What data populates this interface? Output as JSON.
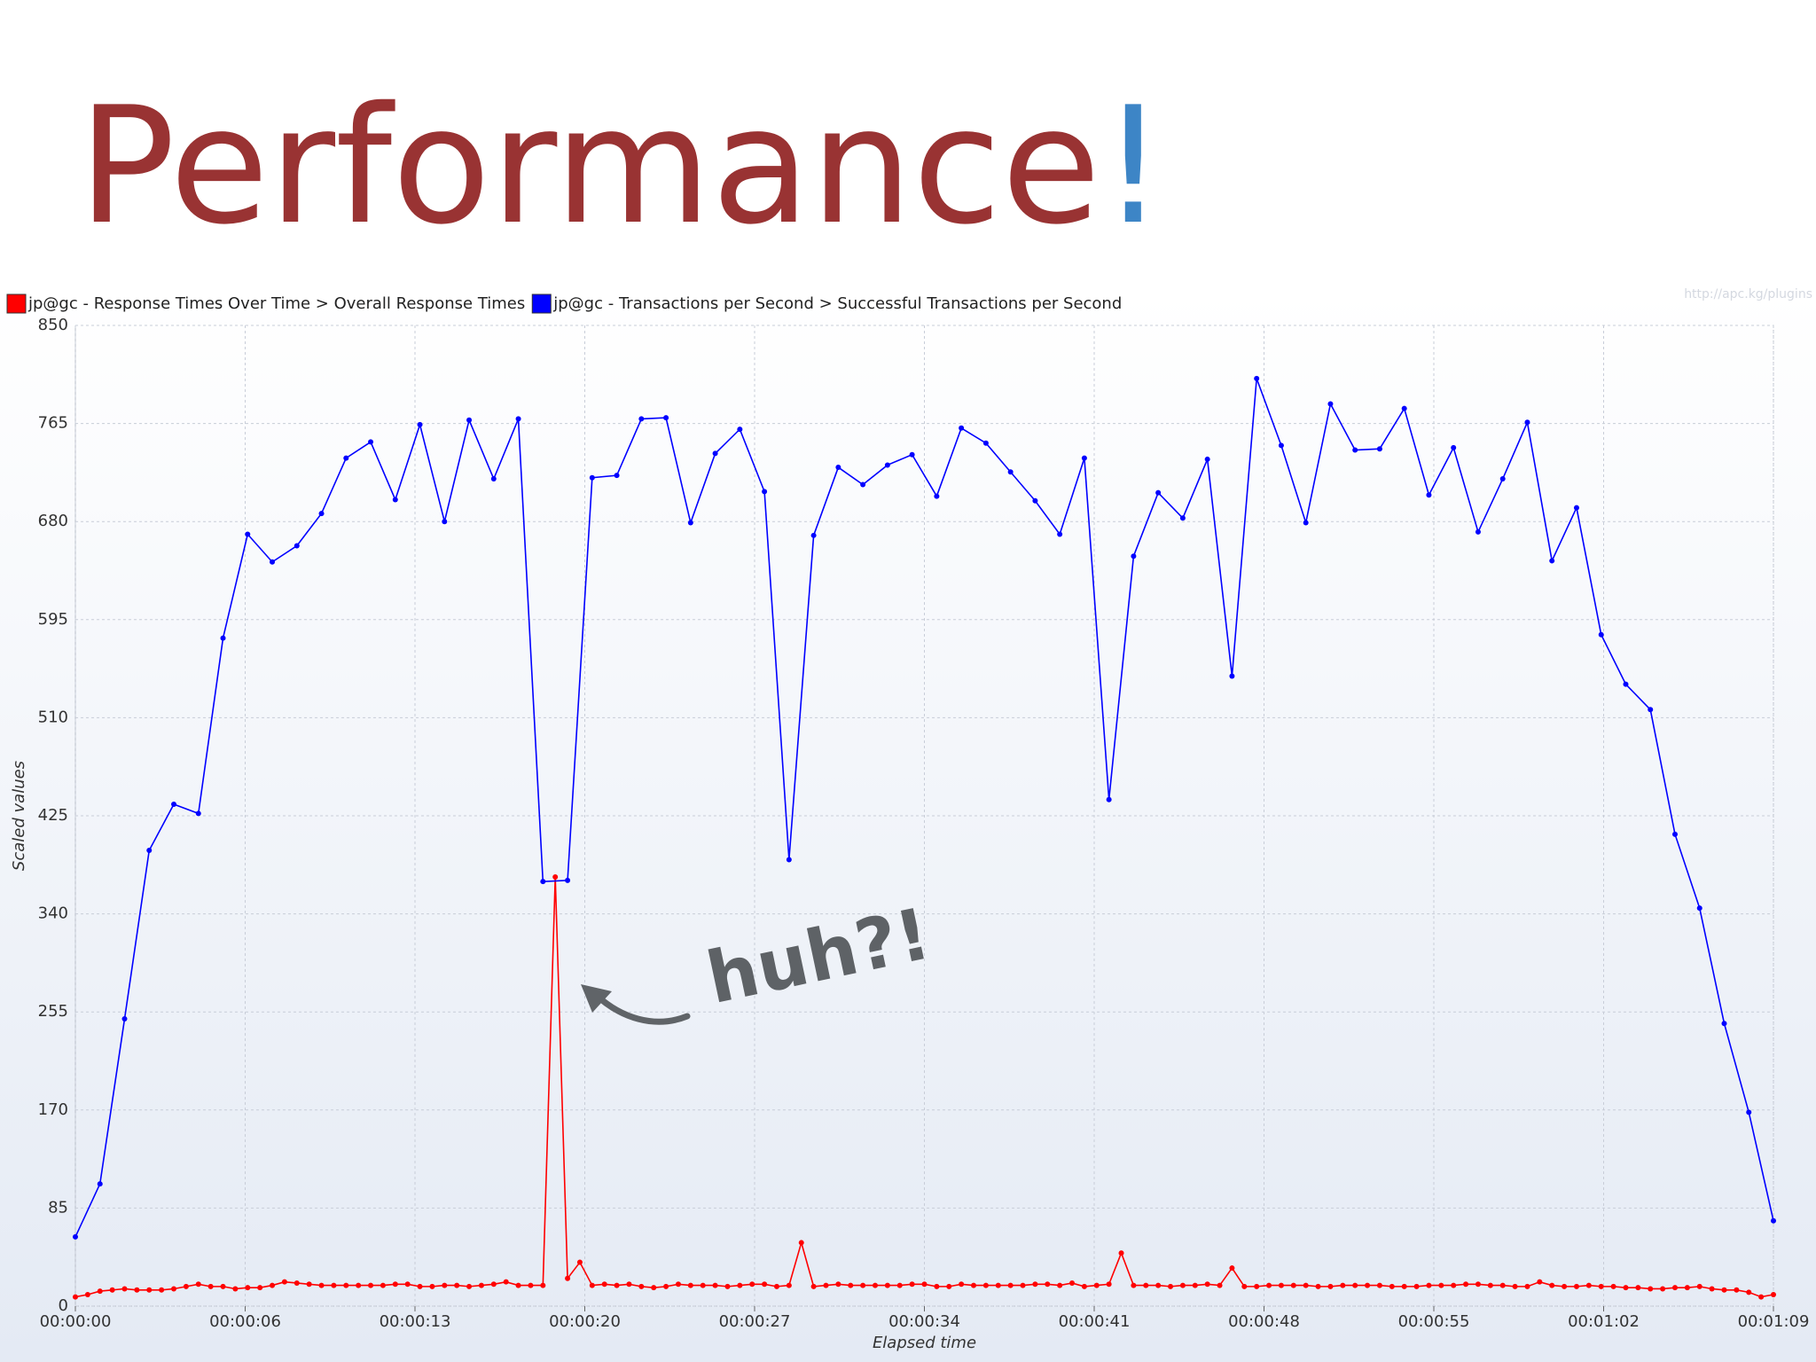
{
  "slide": {
    "title": "Performance",
    "title_mark": "!",
    "annotation": "huh?!",
    "watermark": "http://apc.kg/plugins"
  },
  "chart_data": {
    "type": "line",
    "x_label": "Elapsed time",
    "y_label": "Scaled values",
    "xlim": [
      0,
      69
    ],
    "ylim": [
      0,
      850
    ],
    "xticks": [
      {
        "value": 0,
        "label": "00:00:00"
      },
      {
        "value": 6.9,
        "label": "00:00:06"
      },
      {
        "value": 13.8,
        "label": "00:00:13"
      },
      {
        "value": 20.7,
        "label": "00:00:20"
      },
      {
        "value": 27.6,
        "label": "00:00:27"
      },
      {
        "value": 34.5,
        "label": "00:00:34"
      },
      {
        "value": 41.4,
        "label": "00:00:41"
      },
      {
        "value": 48.3,
        "label": "00:00:48"
      },
      {
        "value": 55.2,
        "label": "00:00:55"
      },
      {
        "value": 62.1,
        "label": "00:01:02"
      },
      {
        "value": 69,
        "label": "00:01:09"
      }
    ],
    "yticks": [
      0,
      85,
      170,
      255,
      340,
      425,
      510,
      595,
      680,
      765,
      850
    ],
    "grid": true,
    "series": [
      {
        "name": "jp@gc - Response Times Over Time > Overall Response Times",
        "color": "#ff0000",
        "x": [
          0,
          0.5,
          1,
          1.5,
          2,
          2.5,
          3,
          3.5,
          4,
          4.5,
          5,
          5.5,
          6,
          6.5,
          7,
          7.5,
          8,
          8.5,
          9,
          9.5,
          10,
          10.5,
          11,
          11.5,
          12,
          12.5,
          13,
          13.5,
          14,
          14.5,
          15,
          15.5,
          16,
          16.5,
          17,
          17.5,
          18,
          18.5,
          19,
          19.5,
          20,
          20.5,
          21,
          21.5,
          22,
          22.5,
          23,
          23.5,
          24,
          24.5,
          25,
          25.5,
          26,
          26.5,
          27,
          27.5,
          28,
          28.5,
          29,
          29.5,
          30,
          30.5,
          31,
          31.5,
          32,
          32.5,
          33,
          33.5,
          34,
          34.5,
          35,
          35.5,
          36,
          36.5,
          37,
          37.5,
          38,
          38.5,
          39,
          39.5,
          40,
          40.5,
          41,
          41.5,
          42,
          42.5,
          43,
          43.5,
          44,
          44.5,
          45,
          45.5,
          46,
          46.5,
          47,
          47.5,
          48,
          48.5,
          49,
          49.5,
          50,
          50.5,
          51,
          51.5,
          52,
          52.5,
          53,
          53.5,
          54,
          54.5,
          55,
          55.5,
          56,
          56.5,
          57,
          57.5,
          58,
          58.5,
          59,
          59.5,
          60,
          60.5,
          61,
          61.5,
          62,
          62.5,
          63,
          63.5,
          64,
          64.5,
          65,
          65.5,
          66,
          66.5,
          67,
          67.5,
          68,
          68.5,
          69
        ],
        "values": [
          8,
          10,
          13,
          14,
          15,
          14,
          14,
          14,
          15,
          17,
          19,
          17,
          17,
          15,
          16,
          16,
          18,
          21,
          20,
          19,
          18,
          18,
          18,
          18,
          18,
          18,
          19,
          19,
          17,
          17,
          18,
          18,
          17,
          18,
          19,
          21,
          18,
          18,
          18,
          372,
          24,
          38,
          18,
          19,
          18,
          19,
          17,
          16,
          17,
          19,
          18,
          18,
          18,
          17,
          18,
          19,
          19,
          17,
          18,
          55,
          17,
          18,
          19,
          18,
          18,
          18,
          18,
          18,
          19,
          19,
          17,
          17,
          19,
          18,
          18,
          18,
          18,
          18,
          19,
          19,
          18,
          20,
          17,
          18,
          19,
          46,
          18,
          18,
          18,
          17,
          18,
          18,
          19,
          18,
          33,
          17,
          17,
          18,
          18,
          18,
          18,
          17,
          17,
          18,
          18,
          18,
          18,
          17,
          17,
          17,
          18,
          18,
          18,
          19,
          19,
          18,
          18,
          17,
          17,
          21,
          18,
          17,
          17,
          18,
          17,
          17,
          16,
          16,
          15,
          15,
          16,
          16,
          17,
          15,
          14,
          14,
          12,
          8,
          10
        ]
      },
      {
        "name": "jp@gc - Transactions per Second > Successful Transactions per Second",
        "color": "#0000ff",
        "x": [
          0,
          1,
          2,
          3,
          4,
          5,
          6,
          7,
          8,
          9,
          10,
          11,
          12,
          13,
          14,
          15,
          16,
          17,
          18,
          19,
          20,
          21,
          22,
          23,
          24,
          25,
          26,
          27,
          28,
          29,
          30,
          31,
          32,
          33,
          34,
          35,
          36,
          37,
          38,
          39,
          40,
          41,
          42,
          43,
          44,
          45,
          46,
          47,
          48,
          49,
          50,
          51,
          52,
          53,
          54,
          55,
          56,
          57,
          58,
          59,
          60,
          61,
          62,
          63,
          64,
          65,
          66,
          67,
          68,
          69
        ],
        "values": [
          60,
          106,
          249,
          395,
          435,
          427,
          579,
          669,
          645,
          659,
          687,
          735,
          749,
          699,
          764,
          680,
          768,
          717,
          769,
          368,
          369,
          718,
          720,
          769,
          770,
          679,
          739,
          760,
          706,
          387,
          668,
          727,
          712,
          729,
          738,
          702,
          761,
          748,
          723,
          698,
          669,
          735,
          439,
          650,
          705,
          683,
          734,
          546,
          804,
          746,
          679,
          782,
          742,
          743,
          778,
          703,
          744,
          671,
          717,
          766,
          646,
          692,
          582,
          539,
          517,
          409,
          345,
          245,
          168,
          74
        ]
      }
    ]
  }
}
